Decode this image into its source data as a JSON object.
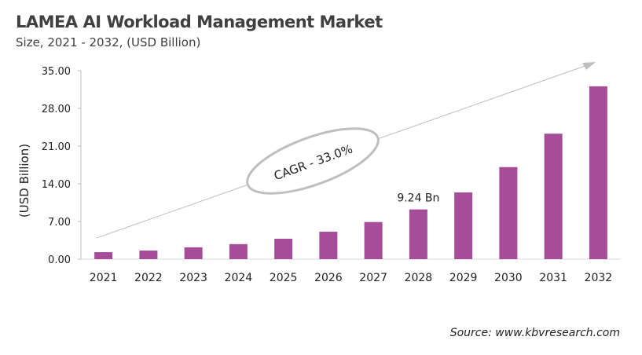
{
  "header": {
    "title": "LAMEA AI Workload Management Market",
    "subtitle": "Size, 2021 - 2032, (USD Billion)"
  },
  "source": "Source: www.kbvresearch.com",
  "chart_data": {
    "type": "bar",
    "title": "LAMEA AI Workload Management Market",
    "subtitle": "Size, 2021 - 2032, (USD Billion)",
    "xlabel": "",
    "ylabel": "(USD Billion)",
    "ylim": [
      0,
      35
    ],
    "yticks": [
      "0.00",
      "7.00",
      "14.00",
      "21.00",
      "28.00",
      "35.00"
    ],
    "categories": [
      "2021",
      "2022",
      "2023",
      "2024",
      "2025",
      "2026",
      "2027",
      "2028",
      "2029",
      "2030",
      "2031",
      "2032"
    ],
    "values": [
      1.3,
      1.6,
      2.2,
      2.8,
      3.8,
      5.1,
      6.9,
      9.24,
      12.4,
      17.1,
      23.3,
      32.1
    ],
    "bar_color": "#A64D9A",
    "grid": false,
    "annotations": {
      "data_label": {
        "category": "2028",
        "text": "9.24 Bn"
      },
      "cagr": "CAGR - 33.0%"
    }
  }
}
